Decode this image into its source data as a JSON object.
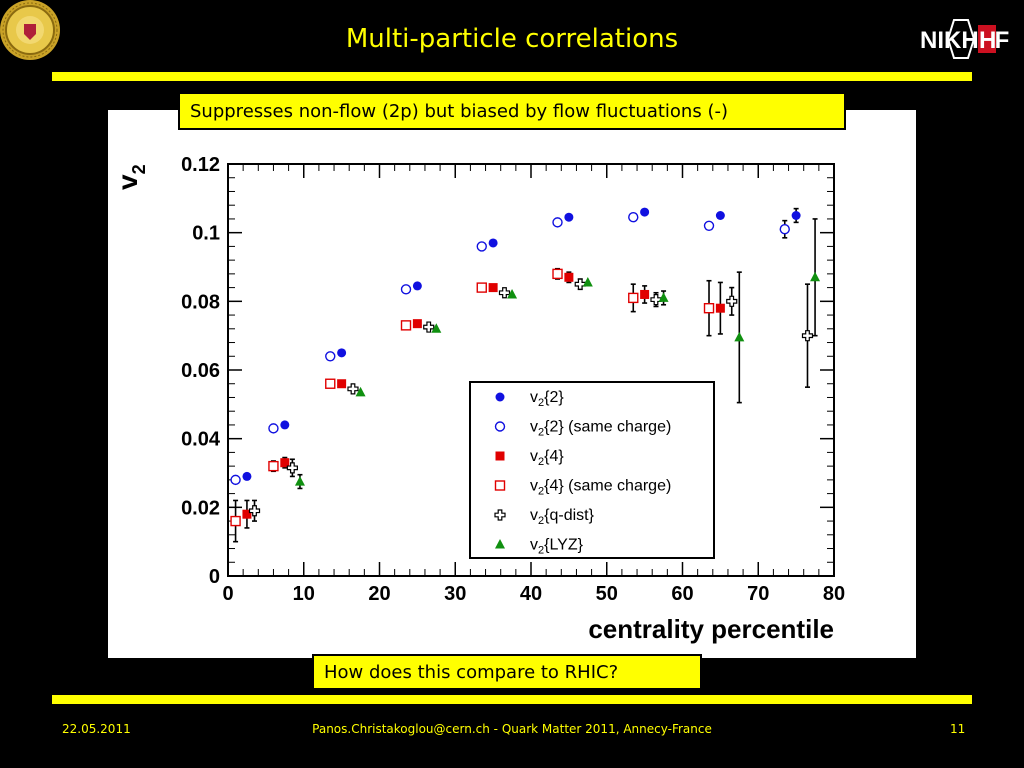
{
  "slide": {
    "title": "Multi-particle correlations",
    "callout_top": "Suppresses non-flow (2p) but biased by flow fluctuations (-)",
    "callout_bottom": "How does this compare to RHIC?",
    "logo_right_text": "NIKHEF",
    "footer": {
      "date": "22.05.2011",
      "center": "Panos.Christakoglou@cern.ch - Quark Matter 2011, Annecy-France",
      "page": "11"
    },
    "colors": {
      "background": "#000000",
      "accent": "#ffff00",
      "blue": "#1010e0",
      "red": "#e00000",
      "green": "#109010"
    }
  },
  "chart_data": {
    "type": "scatter",
    "xlabel": "centrality percentile",
    "ylabel": "v",
    "ylabel_sub": "2",
    "xlim": [
      0,
      80
    ],
    "ylim": [
      0,
      0.12
    ],
    "xticks": [
      "0",
      "10",
      "20",
      "30",
      "40",
      "50",
      "60",
      "70",
      "80"
    ],
    "yticks": [
      "0",
      "0.02",
      "0.04",
      "0.06",
      "0.08",
      "0.1",
      "0.12"
    ],
    "grid": false,
    "legend_position": "bottom-right",
    "series": [
      {
        "name": "v2{2}",
        "legend_main": "v",
        "legend_sub": "2",
        "legend_rest": "{2}",
        "marker": "filled-circle",
        "color": "#1010e0",
        "points": [
          [
            2.5,
            0.029
          ],
          [
            7.5,
            0.044
          ],
          [
            15,
            0.065
          ],
          [
            25,
            0.0845
          ],
          [
            35,
            0.097
          ],
          [
            45,
            0.1045
          ],
          [
            55,
            0.106
          ],
          [
            65,
            0.105
          ],
          [
            75,
            0.105
          ]
        ],
        "err": [
          0,
          0,
          0,
          0,
          0,
          0,
          0,
          0,
          0.002
        ]
      },
      {
        "name": "v2{2} (same charge)",
        "legend_main": "v",
        "legend_sub": "2",
        "legend_rest": "{2} (same charge)",
        "marker": "open-circle",
        "color": "#1010e0",
        "points": [
          [
            1,
            0.028
          ],
          [
            6,
            0.043
          ],
          [
            13.5,
            0.064
          ],
          [
            23.5,
            0.0835
          ],
          [
            33.5,
            0.096
          ],
          [
            43.5,
            0.103
          ],
          [
            53.5,
            0.1045
          ],
          [
            63.5,
            0.102
          ],
          [
            73.5,
            0.101
          ]
        ],
        "err": [
          0,
          0,
          0,
          0,
          0,
          0,
          0,
          0,
          0.0025
        ]
      },
      {
        "name": "v2{4}",
        "legend_main": "v",
        "legend_sub": "2",
        "legend_rest": "{4}",
        "marker": "filled-square",
        "color": "#e00000",
        "points": [
          [
            2.5,
            0.018
          ],
          [
            7.5,
            0.033
          ],
          [
            15,
            0.056
          ],
          [
            25,
            0.0735
          ],
          [
            35,
            0.084
          ],
          [
            45,
            0.087
          ],
          [
            55,
            0.082
          ],
          [
            65,
            0.078
          ]
        ],
        "err": [
          0.004,
          0.0015,
          0,
          0,
          0,
          0.0015,
          0.0025,
          0.0075
        ]
      },
      {
        "name": "v2{4} (same charge)",
        "legend_main": "v",
        "legend_sub": "2",
        "legend_rest": "{4} (same charge)",
        "marker": "open-square",
        "color": "#e00000",
        "points": [
          [
            1,
            0.016
          ],
          [
            6,
            0.032
          ],
          [
            13.5,
            0.056
          ],
          [
            23.5,
            0.073
          ],
          [
            33.5,
            0.084
          ],
          [
            43.5,
            0.088
          ],
          [
            53.5,
            0.081
          ],
          [
            63.5,
            0.078
          ]
        ],
        "err": [
          0.006,
          0.0015,
          0,
          0,
          0,
          0.0015,
          0.004,
          0.008
        ]
      },
      {
        "name": "v2{q-dist}",
        "legend_main": "v",
        "legend_sub": "2",
        "legend_rest": "{q-dist}",
        "marker": "open-cross",
        "color": "#000000",
        "points": [
          [
            3.5,
            0.019
          ],
          [
            8.5,
            0.0315
          ],
          [
            16.5,
            0.0545
          ],
          [
            26.5,
            0.0725
          ],
          [
            36.5,
            0.0825
          ],
          [
            46.5,
            0.085
          ],
          [
            56.5,
            0.0805
          ],
          [
            66.5,
            0.08
          ],
          [
            76.5,
            0.07
          ]
        ],
        "err": [
          0.003,
          0.0025,
          0,
          0,
          0,
          0.0015,
          0.002,
          0.004,
          0.015
        ]
      },
      {
        "name": "v2{LYZ}",
        "legend_main": "v",
        "legend_sub": "2",
        "legend_rest": "{LYZ}",
        "marker": "filled-triangle",
        "color": "#109010",
        "points": [
          [
            9.5,
            0.0275
          ],
          [
            17.5,
            0.0535
          ],
          [
            27.5,
            0.072
          ],
          [
            37.5,
            0.082
          ],
          [
            47.5,
            0.0855
          ],
          [
            57.5,
            0.081
          ],
          [
            67.5,
            0.0695
          ],
          [
            77.5,
            0.087
          ]
        ],
        "err": [
          0.002,
          0,
          0,
          0,
          0,
          0.002,
          0.019,
          0.017
        ]
      }
    ]
  }
}
